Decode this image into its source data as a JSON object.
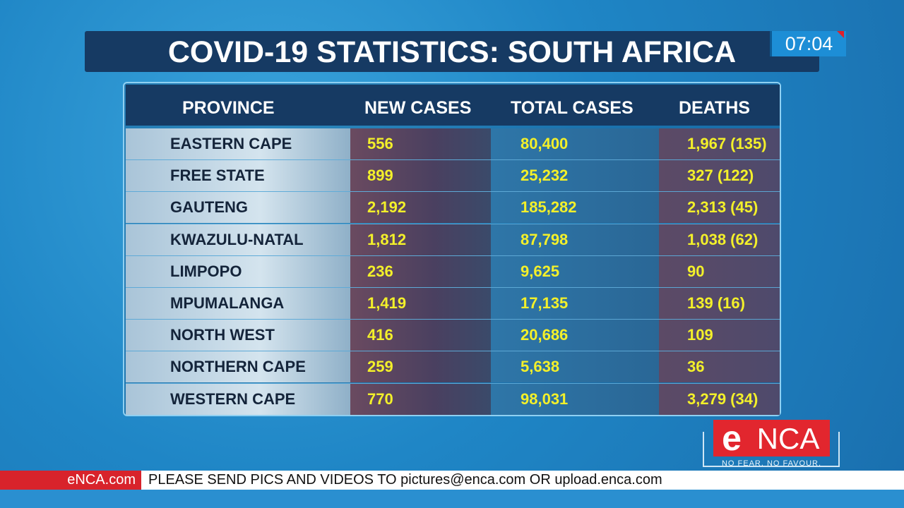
{
  "title": "COVID-19 STATISTICS: SOUTH AFRICA",
  "clock": "07:04",
  "table": {
    "headers": [
      "PROVINCE",
      "NEW CASES",
      "TOTAL CASES",
      "DEATHS"
    ],
    "rows": [
      [
        "EASTERN CAPE",
        "556",
        "80,400",
        "1,967 (135)"
      ],
      [
        "FREE STATE",
        "899",
        "25,232",
        "327 (122)"
      ],
      [
        "GAUTENG",
        "2,192",
        "185,282",
        "2,313 (45)"
      ],
      [
        "KWAZULU-NATAL",
        "1,812",
        "87,798",
        "1,038 (62)"
      ],
      [
        "LIMPOPO",
        "236",
        "9,625",
        "90"
      ],
      [
        "MPUMALANGA",
        "1,419",
        "17,135",
        "139 (16)"
      ],
      [
        "NORTH WEST",
        "416",
        "20,686",
        "109"
      ],
      [
        "NORTHERN CAPE",
        "259",
        "5,638",
        "36"
      ],
      [
        "WESTERN CAPE",
        "770",
        "98,031",
        "3,279 (34)"
      ]
    ]
  },
  "logo": {
    "mark": "e",
    "name": "NCA",
    "tagline": "NO FEAR. NO FAVOUR."
  },
  "ticker": {
    "source": "eNCA.com",
    "message": "PLEASE SEND PICS AND VIDEOS TO pictures@enca.com OR upload.enca.com"
  }
}
